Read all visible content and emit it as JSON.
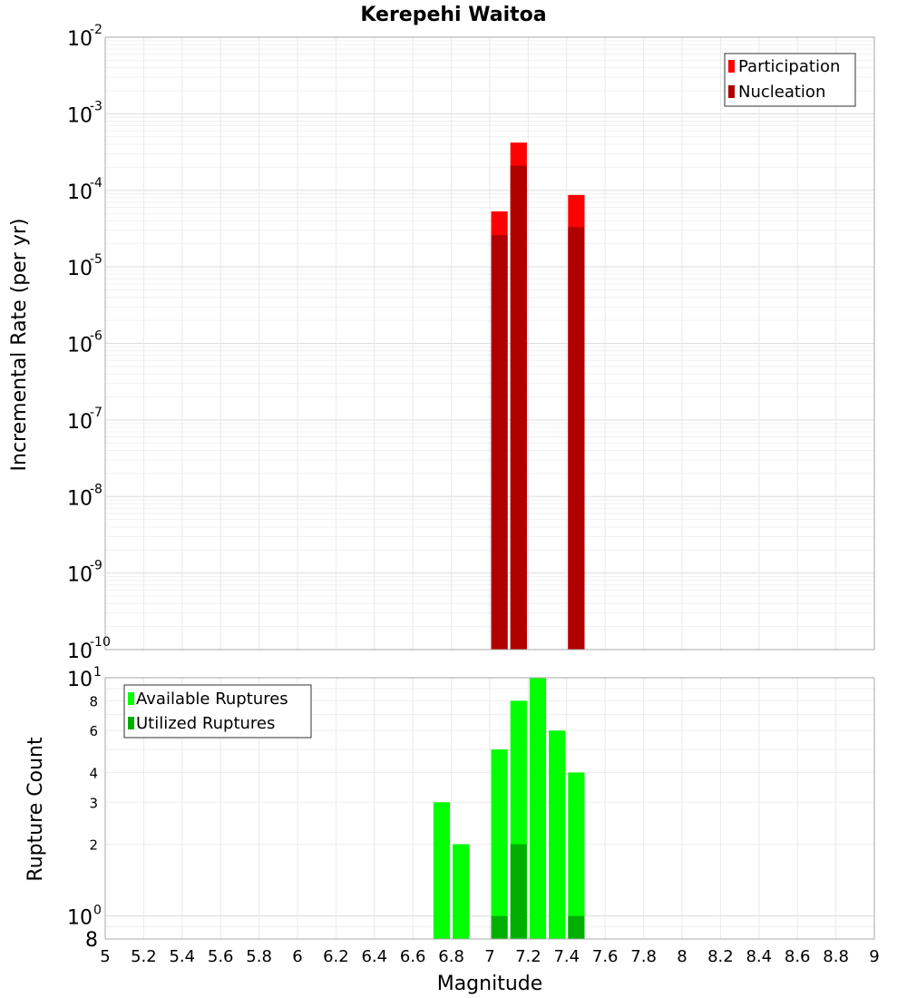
{
  "chart_data": [
    {
      "type": "bar",
      "title": "Kerepehi Waitoa",
      "xlabel": "",
      "ylabel": "Incremental Rate (per yr)",
      "y_scale": "log",
      "ylim": [
        1e-10,
        0.01
      ],
      "xlim": [
        5,
        9
      ],
      "bin_width": 0.1,
      "grid": true,
      "legend_position": "top-right",
      "y_tick_labels": [
        {
          "base": "10",
          "exp": "-2"
        },
        {
          "base": "10",
          "exp": "-3"
        },
        {
          "base": "10",
          "exp": "-4"
        },
        {
          "base": "10",
          "exp": "-5"
        },
        {
          "base": "10",
          "exp": "-6"
        },
        {
          "base": "10",
          "exp": "-7"
        },
        {
          "base": "10",
          "exp": "-8"
        },
        {
          "base": "10",
          "exp": "-9"
        },
        {
          "base": "10",
          "exp": "-10"
        }
      ],
      "series": [
        {
          "name": "Participation",
          "color": "#ff0000",
          "x": [
            7.05,
            7.15,
            7.45
          ],
          "values": [
            5.3e-05,
            0.00042,
            8.7e-05
          ]
        },
        {
          "name": "Nucleation",
          "color": "#b00000",
          "x": [
            7.05,
            7.15,
            7.45
          ],
          "values": [
            2.6e-05,
            0.00021,
            3.3e-05
          ]
        }
      ]
    },
    {
      "type": "bar",
      "title": "",
      "xlabel": "Magnitude",
      "ylabel": "Rupture Count",
      "y_scale": "log",
      "ylim": [
        0.8,
        10
      ],
      "xlim": [
        5,
        9
      ],
      "bin_width": 0.1,
      "grid": true,
      "legend_position": "top-left",
      "x_ticks": [
        "5",
        "5.2",
        "5.4",
        "5.6",
        "5.8",
        "6",
        "6.2",
        "6.4",
        "6.6",
        "6.8",
        "7",
        "7.2",
        "7.4",
        "7.6",
        "7.8",
        "8",
        "8.2",
        "8.4",
        "8.6",
        "8.8",
        "9"
      ],
      "y_tick_labels": {
        "top": {
          "base": "10",
          "exp": "1"
        },
        "one": {
          "base": "10",
          "exp": "0"
        },
        "bottom": "8",
        "minor": [
          "8",
          "6",
          "4",
          "3",
          "2"
        ]
      },
      "series": [
        {
          "name": "Available Ruptures",
          "color": "#00ff00",
          "x": [
            6.75,
            6.85,
            7.05,
            7.15,
            7.25,
            7.35,
            7.45
          ],
          "values": [
            3,
            2,
            5,
            8,
            10,
            6,
            4
          ]
        },
        {
          "name": "Utilized Ruptures",
          "color": "#00b000",
          "x": [
            7.05,
            7.15,
            7.45
          ],
          "values": [
            1,
            2,
            1
          ]
        }
      ]
    }
  ]
}
